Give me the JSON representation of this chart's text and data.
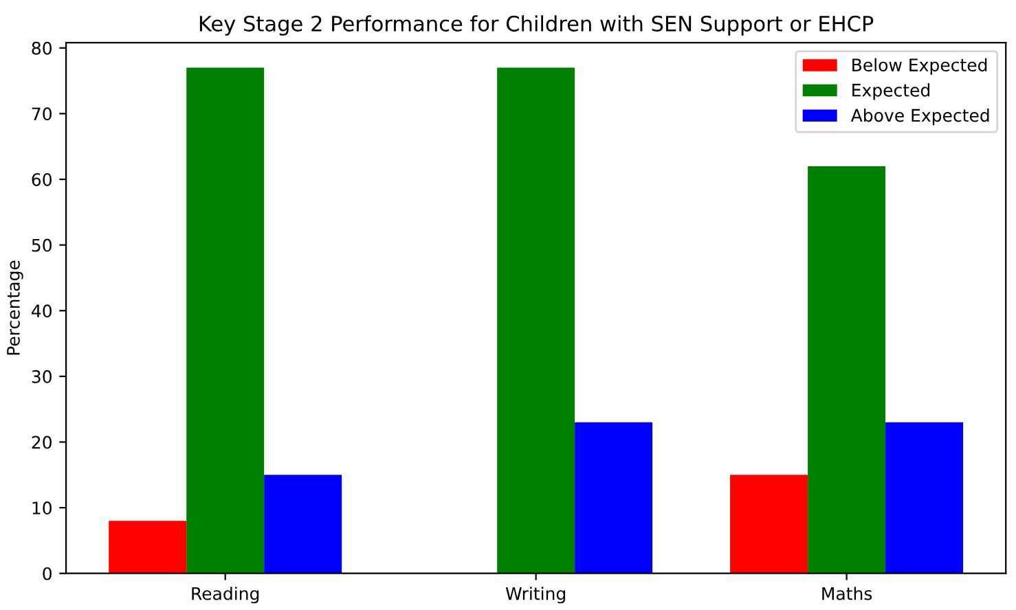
{
  "chart_data": {
    "type": "bar",
    "title": "Key Stage 2 Performance for Children with SEN Support or EHCP",
    "ylabel": "Percentage",
    "categories": [
      "Reading",
      "Writing",
      "Maths"
    ],
    "series": [
      {
        "name": "Below Expected",
        "color": "#ff0000",
        "values": [
          8,
          0,
          15
        ]
      },
      {
        "name": "Expected",
        "color": "#008000",
        "values": [
          77,
          77,
          62
        ]
      },
      {
        "name": "Above Expected",
        "color": "#0000ff",
        "values": [
          15,
          23,
          23
        ]
      }
    ],
    "ylim": [
      0,
      80.8
    ],
    "yticks": [
      0,
      10,
      20,
      30,
      40,
      50,
      60,
      70,
      80
    ],
    "legend": "top right"
  }
}
